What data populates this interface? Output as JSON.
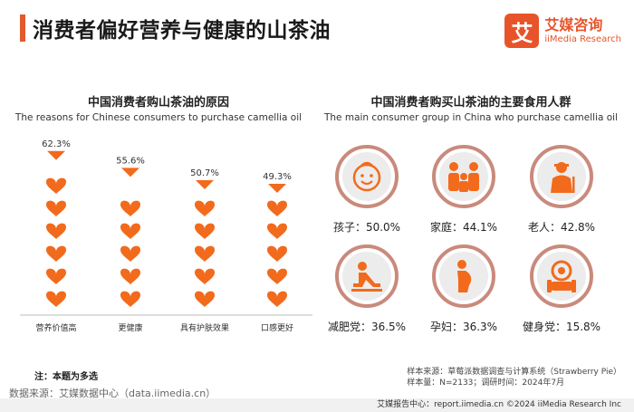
{
  "header": {
    "title": "消费者偏好营养与健康的山茶油"
  },
  "logo": {
    "mark": "艾",
    "cn": "艾媒咨询",
    "en": "iiMedia Research"
  },
  "left_section": {
    "title": "中国消费者购山茶油的原因",
    "subtitle": "The reasons for Chinese consumers to purchase camellia oil"
  },
  "right_section": {
    "title": "中国消费者购买山茶油的主要食用人群",
    "subtitle": "The main consumer group in China who purchase camellia oil"
  },
  "chart_data": {
    "type": "bar",
    "title": "中国消费者购山茶油的原因",
    "subtitle": "The reasons for Chinese consumers to purchase camellia oil",
    "categories": [
      "营养价值高",
      "更健康",
      "具有护肤效果",
      "口感更好"
    ],
    "values": [
      62.3,
      55.6,
      50.7,
      49.3
    ],
    "value_labels": [
      "62.3%",
      "55.6%",
      "50.7%",
      "49.3%"
    ],
    "unit": "%",
    "color": "#f26a1c"
  },
  "groups": [
    {
      "label": "孩子：50.0%",
      "icon": "child-face-icon"
    },
    {
      "label": "家庭：44.1%",
      "icon": "family-icon"
    },
    {
      "label": "老人：42.8%",
      "icon": "elderly-icon"
    },
    {
      "label": "减肥党：36.5%",
      "icon": "fitness-icon"
    },
    {
      "label": "孕妇：36.3%",
      "icon": "pregnant-icon"
    },
    {
      "label": "健身党：15.8%",
      "icon": "dumbbell-icon"
    }
  ],
  "colors": {
    "accent": "#f26a1c",
    "ring": "#c98a7c",
    "circle_bg": "#ececec"
  },
  "note": "注：本题为多选",
  "source": "数据来源：艾媒数据中心（data.iimedia.cn）",
  "sample": {
    "line1": "样本来源：草莓派数据调查与计算系统（Strawberry Pie）",
    "line2": "样本量：N=2133；调研时间：2024年7月"
  },
  "footer": "艾媒报告中心：report.iimedia.cn   ©2024  iiMedia Research  Inc"
}
